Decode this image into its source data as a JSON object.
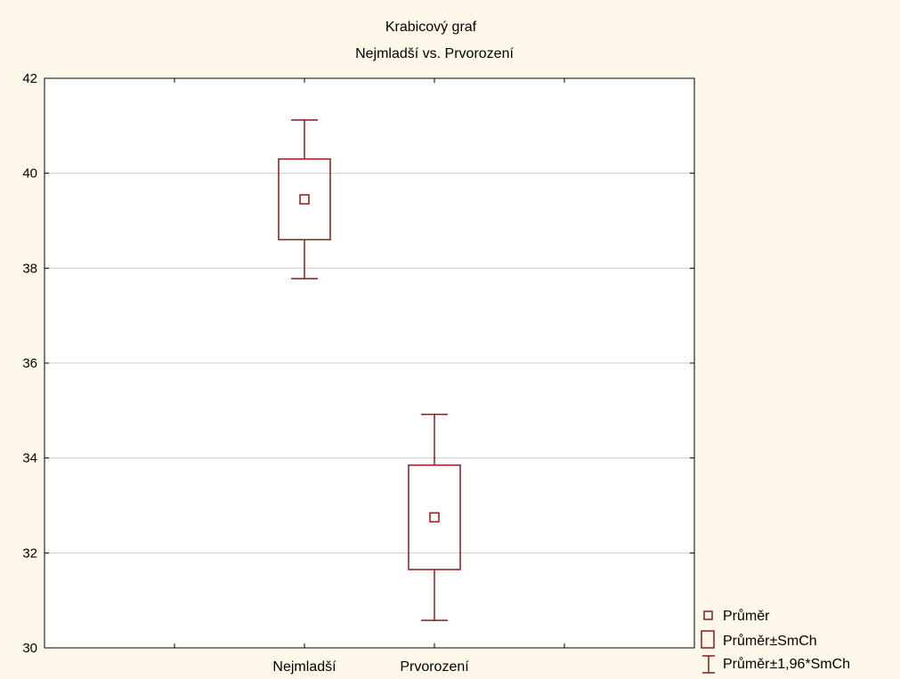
{
  "chart_data": {
    "type": "box",
    "title": [
      "Krabicový graf",
      "Nejmladší vs. Prvorození"
    ],
    "categories": [
      "Nejmladší",
      "Prvorození"
    ],
    "y_ticks": [
      "30",
      "32",
      "34",
      "36",
      "38",
      "40",
      "42"
    ],
    "ylim": [
      30,
      42
    ],
    "grid": true,
    "legend_position": "bottom-right",
    "series": [
      {
        "category": "Nejmladší",
        "mean": 39.45,
        "box_low": 38.6,
        "box_high": 40.3,
        "whisker_low": 37.78,
        "whisker_high": 41.12
      },
      {
        "category": "Prvorození",
        "mean": 32.75,
        "box_low": 31.65,
        "box_high": 33.85,
        "whisker_low": 30.58,
        "whisker_high": 34.92
      }
    ],
    "legend": [
      "Průměr",
      "Průměr±SmCh",
      "Průměr±1,96*SmCh"
    ],
    "colors": {
      "series": "#8b1a1a",
      "grid": "#cccccc",
      "plot_bg": "#ffffff",
      "page_bg": "#fdf8e9"
    }
  }
}
